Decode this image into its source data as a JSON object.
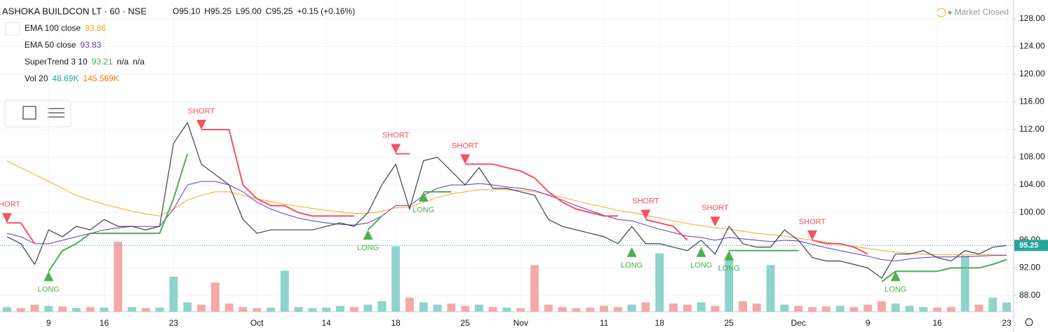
{
  "chart_data": {
    "type": "line",
    "title": "ASHOKA BUILDCON LT · 60 · NSE",
    "ohlc": [
      "O95.10",
      "H95.25",
      "L95.00",
      "C95.25",
      "+0.15 (+0.16%)"
    ],
    "status": "Market Closed",
    "categories": [
      null,
      null,
      null,
      "9",
      null,
      null,
      null,
      "16",
      null,
      null,
      null,
      null,
      "23",
      null,
      null,
      null,
      null,
      null,
      "Oct",
      null,
      null,
      null,
      null,
      "14",
      null,
      null,
      null,
      null,
      "18",
      null,
      null,
      null,
      null,
      "25",
      null,
      null,
      null,
      "Nov",
      null,
      null,
      null,
      null,
      null,
      "11",
      null,
      null,
      null,
      "18",
      null,
      null,
      null,
      null,
      "25",
      null,
      null,
      null,
      null,
      "Dec",
      null,
      null,
      null,
      null,
      "9",
      null,
      null,
      null,
      null,
      "16",
      null,
      null,
      null,
      null,
      "23"
    ],
    "price": {
      "color": "#3a3f4b",
      "values": [
        96.5,
        95.5,
        92.5,
        97.5,
        96.5,
        98,
        97.5,
        99,
        98,
        98,
        97.5,
        98,
        110,
        113,
        107,
        105.5,
        104,
        99,
        97,
        97.5,
        97.5,
        97.5,
        97.5,
        98,
        98.5,
        98,
        100,
        104,
        107,
        100.5,
        107.5,
        108,
        106,
        104,
        106.5,
        103.5,
        103.5,
        103,
        102.5,
        99,
        98,
        97.5,
        97,
        96.5,
        95.5,
        98,
        95.5,
        95.5,
        95,
        94.5,
        96,
        94,
        98,
        95.5,
        95,
        95,
        97.5,
        96,
        93.5,
        93,
        93,
        92.5,
        92,
        90.5,
        94,
        94,
        94.5,
        93.5,
        93,
        94.5,
        94,
        95,
        95.25
      ]
    },
    "last_price": 95.25,
    "indicators": [
      {
        "name": "EMA 100 close",
        "legend_values": [
          93.86
        ],
        "color": "#f5a623",
        "values": [
          107.5,
          106.5,
          105.5,
          104.5,
          103.5,
          102.5,
          101.8,
          101.2,
          100.7,
          100.2,
          99.8,
          99.5,
          100.5,
          101.8,
          102.5,
          103,
          103,
          102.5,
          102,
          101.6,
          101.2,
          100.9,
          100.6,
          100.3,
          100.1,
          99.9,
          99.9,
          100.2,
          100.7,
          100.8,
          101.5,
          102.2,
          102.7,
          103,
          103.3,
          103.3,
          103.3,
          103.2,
          103,
          102.6,
          102.2,
          101.7,
          101.2,
          100.8,
          100.3,
          100,
          99.6,
          99.2,
          98.8,
          98.4,
          98.1,
          97.8,
          97.6,
          97.3,
          97,
          96.8,
          96.6,
          96.3,
          96,
          95.7,
          95.4,
          95.1,
          94.8,
          94.5,
          94.3,
          94.1,
          94,
          93.9,
          93.9,
          93.9,
          93.9,
          93.9,
          93.86
        ]
      },
      {
        "name": "EMA 50 close",
        "legend_values": [
          93.83
        ],
        "color": "#673ab7",
        "values": [
          97,
          96.5,
          95.5,
          95.5,
          96,
          96.5,
          97,
          97.5,
          97.8,
          98,
          98,
          98,
          100.5,
          104,
          104.5,
          104.5,
          104,
          103,
          101.5,
          100.5,
          99.8,
          99.2,
          98.8,
          98.5,
          98.3,
          98.2,
          98.5,
          99.5,
          101,
          101,
          102.5,
          103.5,
          104,
          104,
          104.2,
          104,
          103.7,
          103.5,
          103.2,
          102.5,
          101.8,
          101,
          100.3,
          99.6,
          99,
          98.8,
          98.2,
          97.6,
          97.1,
          96.6,
          96.4,
          96,
          96.4,
          96.2,
          96,
          95.8,
          96,
          95.9,
          95.4,
          94.9,
          94.5,
          94.1,
          93.7,
          93.2,
          93,
          93.3,
          93.5,
          93.6,
          93.6,
          93.6,
          93.7,
          93.8,
          93.83
        ]
      },
      {
        "name": "SuperTrend 3 10",
        "legend_values": [
          93.21,
          "n/a",
          "n/a"
        ],
        "color": "#4caf50",
        "down_color": "#f7525f",
        "values": [
          98.5,
          98.5,
          95.5,
          91.5,
          94.5,
          95.5,
          97,
          97,
          97,
          97,
          97,
          97,
          102,
          108.5,
          112,
          112,
          112,
          104,
          102,
          101,
          101,
          100,
          99.5,
          99.5,
          99.5,
          99.5,
          97.5,
          99.5,
          108.5,
          108.5,
          103,
          103,
          103,
          107,
          107,
          107,
          106.5,
          106,
          105,
          103,
          101.5,
          100.5,
          100,
          99.5,
          99.5,
          95,
          99,
          98.5,
          98,
          96,
          95,
          98,
          94.5,
          94.5,
          94.5,
          94.5,
          94.5,
          94.5,
          96,
          95.5,
          95.5,
          95,
          94,
          90,
          91.5,
          91.5,
          91.5,
          91.5,
          92,
          92,
          92,
          92.5,
          93.21
        ]
      }
    ],
    "volume": {
      "name": "Vol 20",
      "legend_values": [
        {
          "value": 48690,
          "label": "48.69K"
        },
        {
          "value": 145569,
          "label": "145.569K"
        }
      ],
      "up_color": "#8fd3cc",
      "down_color": "#f4a9a9",
      "values": [
        40,
        30,
        60,
        50,
        45,
        30,
        40,
        35,
        600,
        40,
        30,
        35,
        300,
        80,
        60,
        250,
        70,
        40,
        30,
        35,
        350,
        40,
        30,
        35,
        50,
        40,
        60,
        90,
        560,
        120,
        80,
        60,
        70,
        50,
        60,
        40,
        35,
        30,
        400,
        60,
        40,
        30,
        35,
        50,
        40,
        60,
        80,
        500,
        70,
        60,
        80,
        50,
        450,
        90,
        70,
        400,
        60,
        50,
        40,
        45,
        50,
        40,
        60,
        90,
        70,
        50,
        40,
        35,
        40,
        480,
        60,
        120,
        80
      ]
    },
    "signals": [
      {
        "label": "SHORT",
        "index": 0
      },
      {
        "label": "LONG",
        "index": 3
      },
      {
        "label": "SHORT",
        "index": 14
      },
      {
        "label": "LONG",
        "index": 26
      },
      {
        "label": "SHORT",
        "index": 28
      },
      {
        "label": "LONG",
        "index": 30
      },
      {
        "label": "SHORT",
        "index": 33
      },
      {
        "label": "LONG",
        "index": 45
      },
      {
        "label": "SHORT",
        "index": 46
      },
      {
        "label": "LONG",
        "index": 50
      },
      {
        "label": "SHORT",
        "index": 51
      },
      {
        "label": "LONG",
        "index": 52
      },
      {
        "label": "SHORT",
        "index": 58
      },
      {
        "label": "LONG",
        "index": 64
      }
    ],
    "ylim": [
      85.67,
      130.73
    ],
    "yticks": [
      {
        "value": 88,
        "label": "88.00"
      },
      {
        "value": 92,
        "label": "92.00"
      },
      {
        "value": 96,
        "label": "96.00"
      },
      {
        "value": 100,
        "label": "100.00"
      },
      {
        "value": 104,
        "label": "104.00"
      },
      {
        "value": 108,
        "label": "108.00"
      },
      {
        "value": 112,
        "label": "112.00"
      },
      {
        "value": 116,
        "label": "116.00"
      },
      {
        "value": 120,
        "label": "120.00"
      },
      {
        "value": 124,
        "label": "124.00"
      },
      {
        "value": 128,
        "label": "128.00"
      }
    ],
    "grid": true
  }
}
